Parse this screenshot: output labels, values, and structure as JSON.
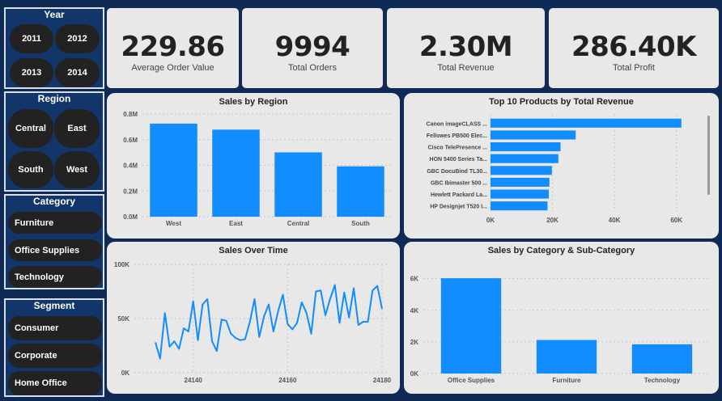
{
  "slicers": {
    "year": {
      "title": "Year",
      "items": [
        "2011",
        "2012",
        "2013",
        "2014"
      ]
    },
    "region": {
      "title": "Region",
      "items": [
        "Central",
        "East",
        "South",
        "West"
      ]
    },
    "category": {
      "title": "Category",
      "items": [
        "Furniture",
        "Office Supplies",
        "Technology"
      ]
    },
    "segment": {
      "title": "Segment",
      "items": [
        "Consumer",
        "Corporate",
        "Home Office"
      ]
    }
  },
  "kpis": [
    {
      "value": "229.86",
      "label": "Average Order Value"
    },
    {
      "value": "9994",
      "label": "Total Orders"
    },
    {
      "value": "2.30M",
      "label": "Total Revenue"
    },
    {
      "value": "286.40K",
      "label": "Total Profit"
    }
  ],
  "colors": {
    "bar": "#118dff",
    "card": "#e8e8e8",
    "background": "#0e2a55",
    "pill": "#222222"
  },
  "chart_data": [
    {
      "id": "sales_by_region",
      "type": "bar",
      "title": "Sales by Region",
      "categories": [
        "West",
        "East",
        "Central",
        "South"
      ],
      "values": [
        725000,
        678000,
        501000,
        392000
      ],
      "yticks": [
        "0.0M",
        "0.2M",
        "0.4M",
        "0.6M",
        "0.8M"
      ],
      "ylim": [
        0,
        800000
      ],
      "grid": true
    },
    {
      "id": "top10_products",
      "type": "bar",
      "orientation": "horizontal",
      "title": "Top 10 Products by Total Revenue",
      "categories": [
        "Canon imageCLASS ...",
        "Fellowes PB500 Elec...",
        "Cisco TelePresence ...",
        "HON 5400 Series Ta...",
        "GBC DocuBind TL30...",
        "GBC Ibimaster 500 ...",
        "Hewlett Packard La...",
        "HP Designjet T520 I..."
      ],
      "values": [
        61600,
        27500,
        22600,
        21900,
        19800,
        19000,
        18800,
        18400
      ],
      "xticks": [
        "0K",
        "20K",
        "40K",
        "60K"
      ],
      "xlim": [
        0,
        64000
      ],
      "grid": true
    },
    {
      "id": "sales_over_time",
      "type": "line",
      "title": "Sales Over Time",
      "xlim": [
        24132,
        24180
      ],
      "xticks": [
        "24140",
        "24160",
        "24180"
      ],
      "ylim": [
        0,
        100000
      ],
      "yticks": [
        "0K",
        "50K",
        "100K"
      ],
      "x": [
        24132,
        24133,
        24134,
        24135,
        24136,
        24137,
        24138,
        24139,
        24140,
        24141,
        24142,
        24143,
        24144,
        24145,
        24146,
        24147,
        24148,
        24149,
        24150,
        24151,
        24152,
        24153,
        24154,
        24155,
        24156,
        24157,
        24158,
        24159,
        24160,
        24161,
        24162,
        24163,
        24164,
        24165,
        24166,
        24167,
        24168,
        24169,
        24170,
        24171,
        24172,
        24173,
        24174,
        24175,
        24176,
        24177,
        24178,
        24179,
        24180
      ],
      "values": [
        28000,
        13000,
        55000,
        24000,
        29000,
        22000,
        41000,
        38000,
        66000,
        30000,
        63000,
        68000,
        29000,
        20000,
        49000,
        48000,
        36000,
        32000,
        30000,
        31000,
        47000,
        68000,
        33000,
        52000,
        63000,
        38000,
        57000,
        72000,
        45000,
        40000,
        46000,
        65000,
        55000,
        36000,
        75000,
        76000,
        53000,
        68000,
        81000,
        46000,
        74000,
        51000,
        78000,
        44000,
        47000,
        47000,
        76000,
        80000,
        59000
      ],
      "grid": true
    },
    {
      "id": "sales_by_category",
      "type": "bar",
      "title": "Sales by Category & Sub-Category",
      "categories": [
        "Office Supplies",
        "Furniture",
        "Technology"
      ],
      "values": [
        6026,
        2121,
        1847
      ],
      "yticks": [
        "0K",
        "2K",
        "4K",
        "6K"
      ],
      "ylim": [
        0,
        6800
      ],
      "grid": true
    }
  ]
}
